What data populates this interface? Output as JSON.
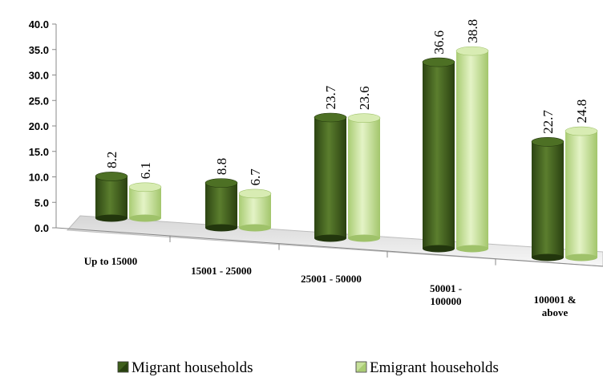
{
  "chart_data": {
    "type": "bar",
    "categories": [
      "Up to 15000",
      "15001 - 25000",
      "25001 - 50000",
      "50001 - 100000",
      "100001 & above"
    ],
    "category_lines": [
      [
        "Up to 15000"
      ],
      [
        "15001 - 25000"
      ],
      [
        "25001 - 50000"
      ],
      [
        "50001 -",
        "100000"
      ],
      [
        "100001 &",
        "above"
      ]
    ],
    "series": [
      {
        "name": "Migrant households",
        "values": [
          8.2,
          8.8,
          23.7,
          36.6,
          22.7
        ],
        "color": "#3f5f1c"
      },
      {
        "name": "Emigrant households",
        "values": [
          6.1,
          6.7,
          23.6,
          38.8,
          24.8
        ],
        "color": "#c6e09a"
      }
    ],
    "y_ticks": [
      "0.0",
      "5.0",
      "10.0",
      "15.0",
      "20.0",
      "25.0",
      "30.0",
      "35.0",
      "40.0"
    ],
    "ylim": [
      0,
      40
    ],
    "grid": false,
    "legend_position": "bottom",
    "data_labels": true
  }
}
